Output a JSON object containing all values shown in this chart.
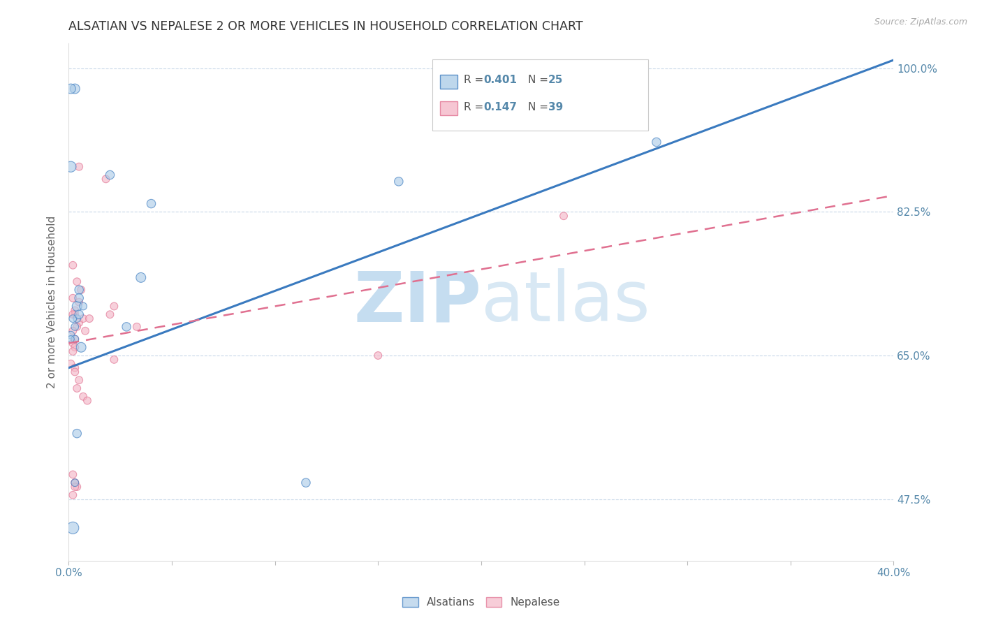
{
  "title": "ALSATIAN VS NEPALESE 2 OR MORE VEHICLES IN HOUSEHOLD CORRELATION CHART",
  "source_text": "Source: ZipAtlas.com",
  "ylabel": "2 or more Vehicles in Household",
  "legend_label1": "Alsatians",
  "legend_label2": "Nepalese",
  "R1": 0.401,
  "N1": 25,
  "R2": 0.147,
  "N2": 39,
  "color_blue": "#aecde8",
  "color_pink": "#f4b8c8",
  "line_blue": "#3a7abf",
  "line_pink": "#e07090",
  "watermark_zip": "ZIP",
  "watermark_atlas": "atlas",
  "alsatian_x": [
    0.001,
    0.02,
    0.04,
    0.003,
    0.035,
    0.16,
    0.004,
    0.005,
    0.028,
    0.006,
    0.004,
    0.002,
    0.003,
    0.001,
    0.005,
    0.007,
    0.005,
    0.004,
    0.003,
    0.001,
    0.002,
    0.003,
    0.285,
    0.001,
    0.115
  ],
  "alsatian_y": [
    0.88,
    0.87,
    0.835,
    0.975,
    0.745,
    0.862,
    0.71,
    0.73,
    0.685,
    0.66,
    0.695,
    0.695,
    0.685,
    0.675,
    0.72,
    0.71,
    0.7,
    0.555,
    0.67,
    0.67,
    0.44,
    0.495,
    0.91,
    0.975,
    0.495
  ],
  "alsatian_size": [
    120,
    80,
    80,
    100,
    100,
    80,
    100,
    80,
    80,
    100,
    60,
    60,
    60,
    60,
    80,
    60,
    80,
    80,
    60,
    50,
    150,
    60,
    80,
    100,
    80
  ],
  "nepalese_x": [
    0.005,
    0.018,
    0.005,
    0.022,
    0.033,
    0.002,
    0.002,
    0.004,
    0.006,
    0.003,
    0.007,
    0.008,
    0.01,
    0.005,
    0.003,
    0.004,
    0.002,
    0.002,
    0.003,
    0.002,
    0.003,
    0.002,
    0.001,
    0.003,
    0.003,
    0.005,
    0.004,
    0.007,
    0.009,
    0.02,
    0.022,
    0.24,
    0.15,
    0.003,
    0.002,
    0.003,
    0.004,
    0.003,
    0.002
  ],
  "nepalese_y": [
    0.88,
    0.865,
    0.69,
    0.71,
    0.685,
    0.76,
    0.72,
    0.74,
    0.73,
    0.7,
    0.695,
    0.68,
    0.695,
    0.715,
    0.705,
    0.685,
    0.7,
    0.68,
    0.67,
    0.665,
    0.66,
    0.655,
    0.64,
    0.635,
    0.63,
    0.62,
    0.61,
    0.6,
    0.595,
    0.7,
    0.645,
    0.82,
    0.65,
    0.495,
    0.505,
    0.495,
    0.49,
    0.49,
    0.48
  ],
  "nepalese_size": [
    60,
    60,
    60,
    60,
    60,
    60,
    60,
    60,
    60,
    60,
    60,
    60,
    60,
    60,
    60,
    60,
    60,
    60,
    60,
    60,
    60,
    60,
    60,
    60,
    60,
    60,
    60,
    60,
    60,
    60,
    60,
    60,
    60,
    60,
    60,
    60,
    60,
    60,
    60
  ],
  "blue_line_x0": 0.0,
  "blue_line_y0": 0.635,
  "blue_line_x1": 0.4,
  "blue_line_y1": 1.01,
  "pink_line_x0": 0.0,
  "pink_line_y0": 0.665,
  "pink_line_x1": 0.4,
  "pink_line_y1": 0.845,
  "xlim": [
    0.0,
    0.4
  ],
  "ylim": [
    0.4,
    1.03
  ],
  "ytick_positions": [
    0.475,
    0.65,
    0.825,
    1.0
  ],
  "ytick_labels": [
    "47.5%",
    "65.0%",
    "82.5%",
    "100.0%"
  ],
  "xtick_positions": [
    0.0,
    0.05,
    0.1,
    0.15,
    0.2,
    0.25,
    0.3,
    0.35,
    0.4
  ],
  "xtick_labels": [
    "0.0%",
    "",
    "",
    "",
    "",
    "",
    "",
    "",
    "40.0%"
  ]
}
